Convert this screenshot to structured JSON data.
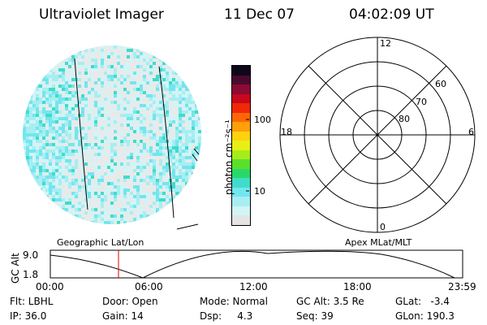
{
  "header": {
    "instrument": "Ultraviolet Imager",
    "date": "11 Dec 07",
    "time": "04:02:09 UT"
  },
  "colorbar": {
    "unit_label": "photon cm⁻²s⁻¹",
    "ticks": [
      "100",
      "10"
    ],
    "colors": [
      "#e4e4e4",
      "#d2f4f6",
      "#a6eef2",
      "#72e6ee",
      "#40dcca",
      "#2ad86a",
      "#5ae02a",
      "#a6ec1c",
      "#e6f014",
      "#ffd20e",
      "#ffa00a",
      "#ff6608",
      "#f02808",
      "#c8081c",
      "#8c0a34",
      "#4a0a2e",
      "#10061a"
    ]
  },
  "left_panel": {
    "label": "Geographic Lat/Lon"
  },
  "right_panel": {
    "label": "Apex MLat/MLT",
    "mlt_labels": {
      "top": "12",
      "bottom": "0",
      "left": "18",
      "right": "6"
    },
    "lat_labels": [
      "60",
      "70",
      "80"
    ]
  },
  "timeline": {
    "ylabel": "GC Alt",
    "y_ticks": [
      "9.0",
      "1.8"
    ],
    "x_ticks": [
      "00:00",
      "06:00",
      "12:00",
      "18:00",
      "23:59"
    ],
    "marker_color": "#e00000"
  },
  "footer": {
    "filter": "Flt: LBHL",
    "ip": "IP: 36.0",
    "door": "Door: Open",
    "gain": "Gain: 14",
    "mode": "Mode: Normal",
    "dsp": "Dsp:     4.3",
    "gc_alt": "GC Alt: 3.5 Re",
    "seq": "Seq: 39",
    "glat": "GLat:   -3.4",
    "glon": "GLon: 190.3"
  }
}
